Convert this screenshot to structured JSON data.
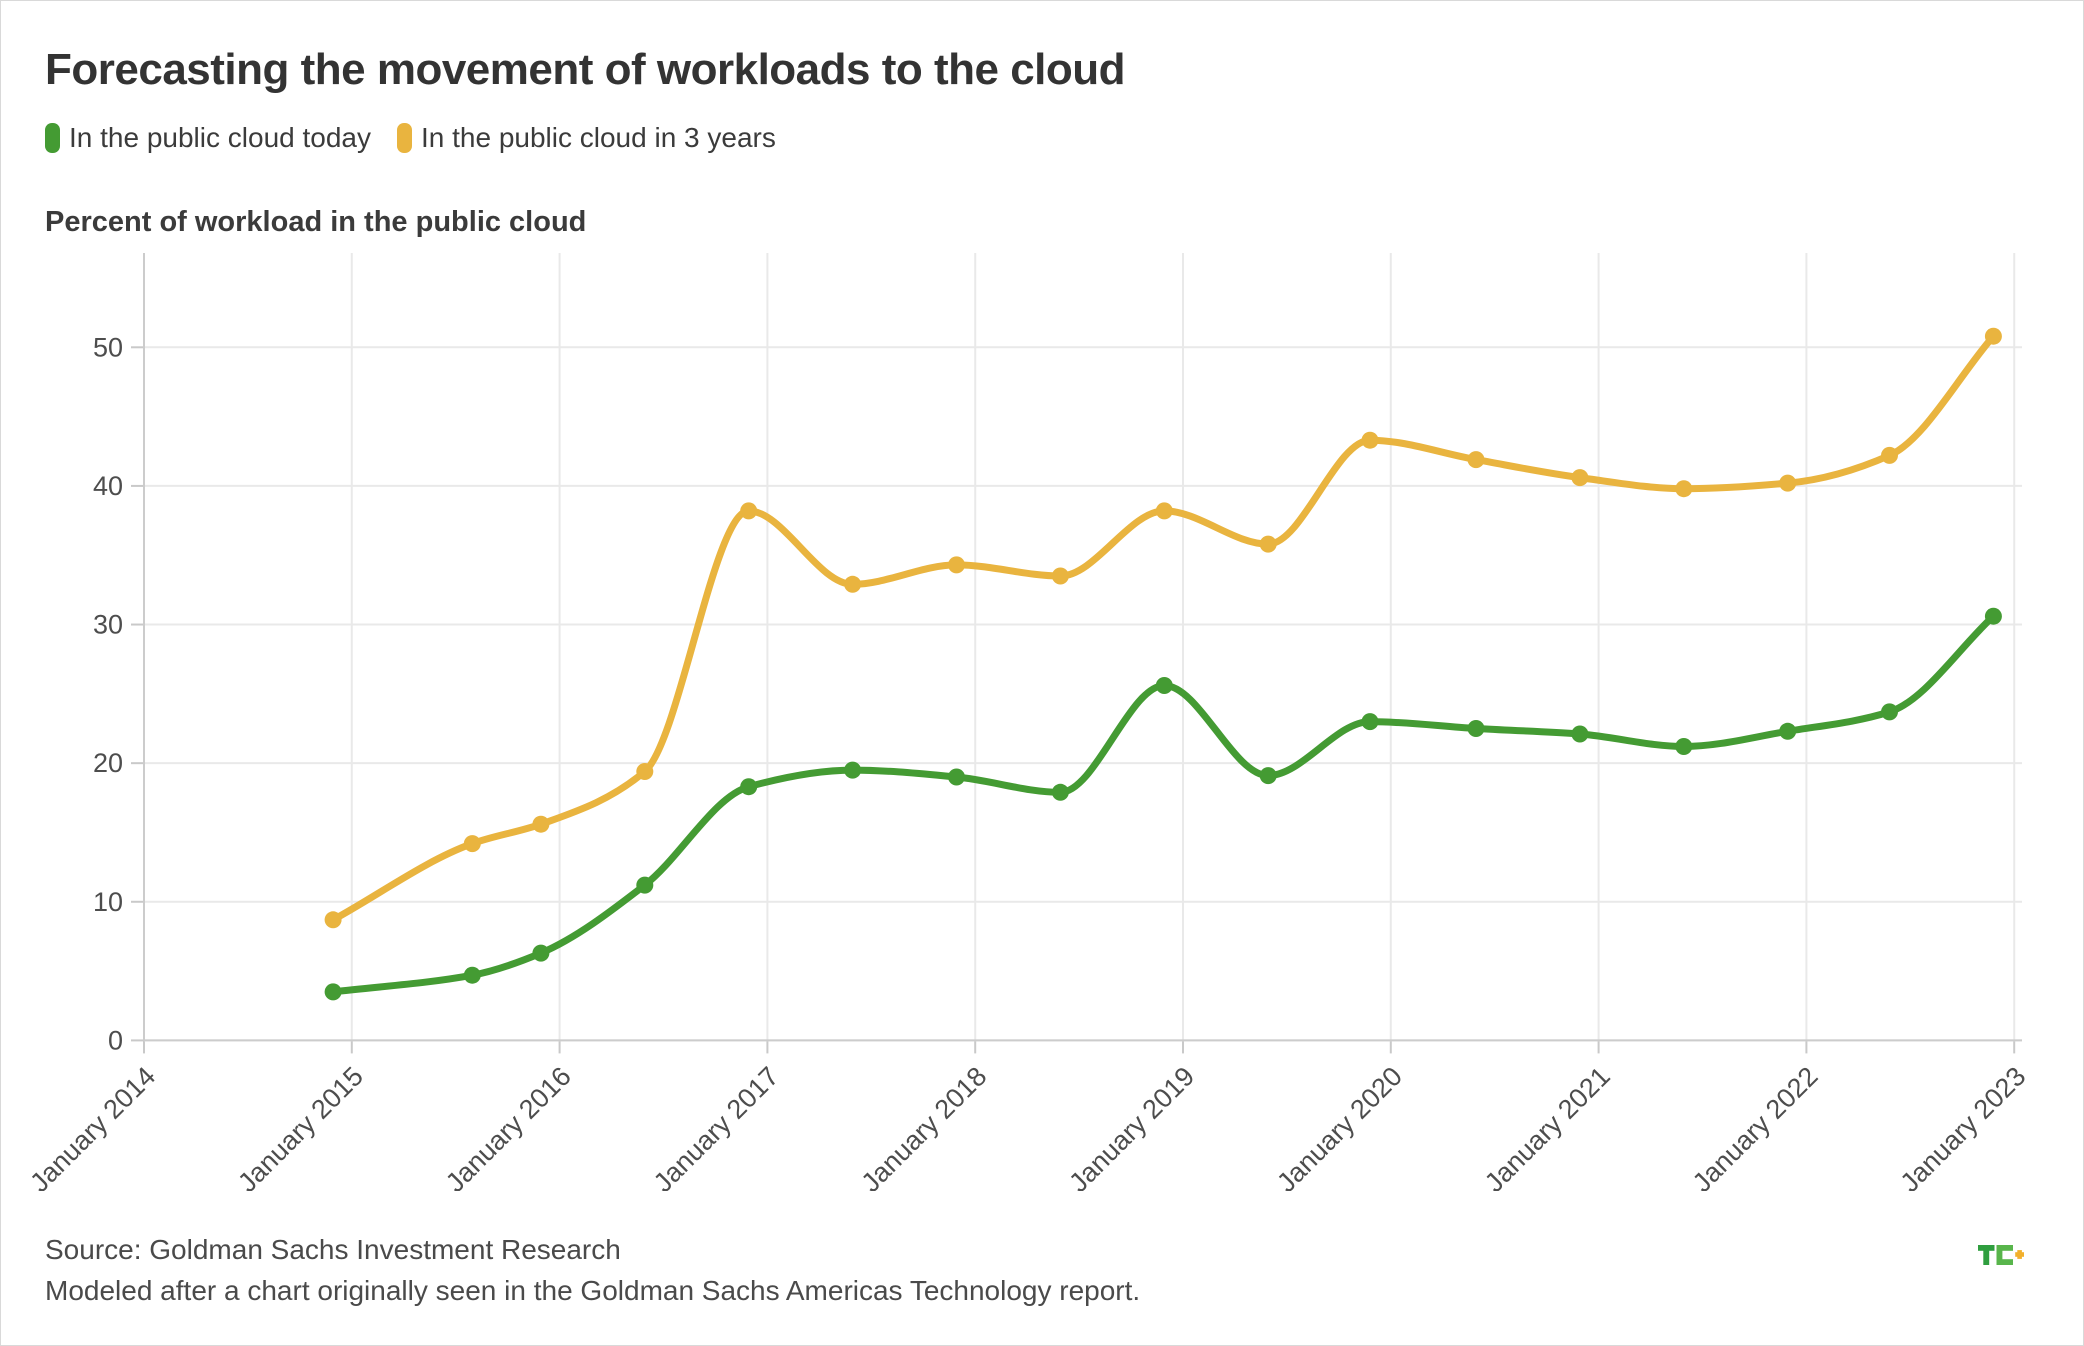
{
  "page": {
    "title": "Forecasting the movement of workloads to the cloud",
    "subtitle": "Percent of workload in the public cloud",
    "source_line1": "Source: Goldman Sachs Investment Research",
    "source_line2": "Modeled after a chart originally seen in the Goldman Sachs Americas Technology report.",
    "brand": "TC+"
  },
  "legend": {
    "items": [
      {
        "label": "In the public cloud today",
        "color": "#449b33"
      },
      {
        "label": "In the public cloud in 3 years",
        "color": "#e9b43f"
      }
    ]
  },
  "chart_data": {
    "type": "line",
    "title": "Forecasting the movement of workloads to the cloud",
    "ylabel": "Percent of workload in the public cloud",
    "x": [
      2014.91,
      2015.58,
      2015.91,
      2016.41,
      2016.91,
      2017.41,
      2017.91,
      2018.41,
      2018.91,
      2019.41,
      2019.9,
      2020.41,
      2020.91,
      2021.41,
      2021.91,
      2022.4,
      2022.9
    ],
    "series": [
      {
        "name": "In the public cloud today",
        "color": "#449b33",
        "values": [
          3.5,
          4.7,
          6.3,
          11.2,
          18.3,
          19.5,
          19.0,
          17.9,
          25.6,
          19.1,
          23.0,
          22.5,
          22.1,
          21.2,
          22.3,
          23.7,
          30.6
        ]
      },
      {
        "name": "In the public cloud in 3 years",
        "color": "#e9b43f",
        "values": [
          8.7,
          14.2,
          15.6,
          19.4,
          38.2,
          32.9,
          34.3,
          33.5,
          38.2,
          35.8,
          43.3,
          41.9,
          40.6,
          39.8,
          40.2,
          42.2,
          50.8
        ]
      }
    ],
    "x_ticks": [
      2014,
      2015,
      2016,
      2017,
      2018,
      2019,
      2020,
      2021,
      2022,
      2023
    ],
    "x_tick_labels": [
      "January 2014",
      "January 2015",
      "January 2016",
      "January 2017",
      "January 2018",
      "January 2019",
      "January 2020",
      "January 2021",
      "January 2022",
      "January 2023"
    ],
    "y_ticks": [
      0,
      10,
      20,
      30,
      40,
      50
    ],
    "xlim": [
      2014,
      2023.05
    ],
    "ylim": [
      0,
      57
    ],
    "grid": true,
    "smooth": true,
    "marker": "circle",
    "legend_position": "top-left"
  },
  "colors": {
    "grid": "#e9e9e9",
    "spine": "#cccccc",
    "tick": "#c9c9c9",
    "axis_text": "#4d4d4d",
    "logo_t": "#2f9e3f",
    "logo_c": "#58b54b",
    "logo_plus": "#f2b02c"
  }
}
